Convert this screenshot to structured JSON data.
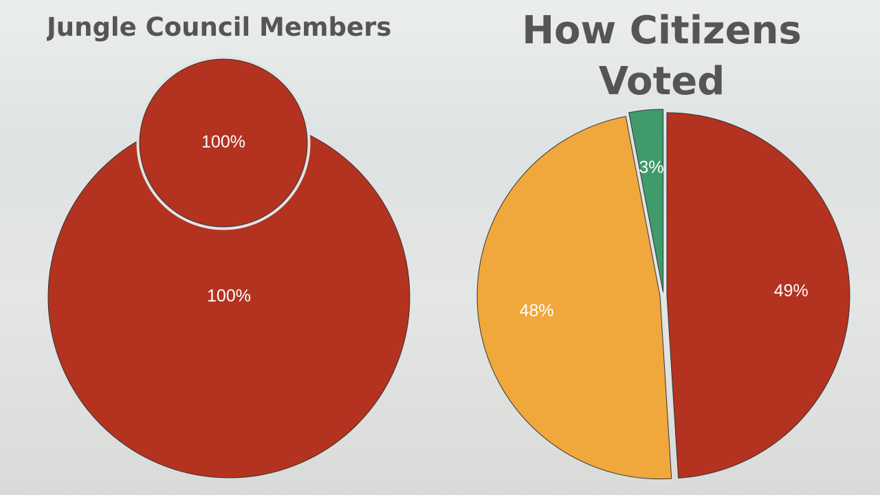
{
  "chart_data": [
    {
      "type": "pie",
      "title": "Jungle Council Members",
      "values": [
        100
      ],
      "value_labels": [
        "100%"
      ],
      "colors": [
        "#b33320"
      ]
    },
    {
      "type": "pie",
      "values": [
        100
      ],
      "value_labels": [
        "100%"
      ],
      "colors": [
        "#b33320"
      ]
    },
    {
      "type": "pie",
      "title": "How Citizens Voted",
      "values": [
        49,
        48,
        3
      ],
      "value_labels": [
        "49%",
        "48%",
        "3%"
      ],
      "colors": [
        "#b33320",
        "#f0a83c",
        "#3f9a6c"
      ]
    }
  ]
}
